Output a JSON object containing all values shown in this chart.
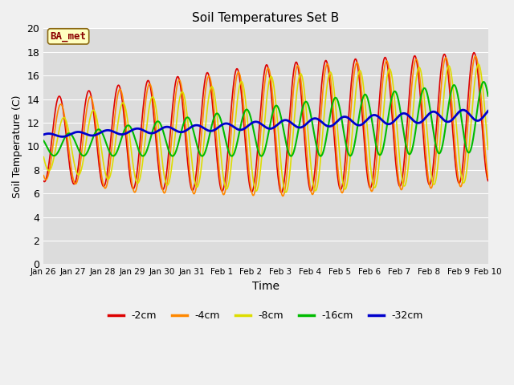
{
  "title": "Soil Temperatures Set B",
  "xlabel": "Time",
  "ylabel": "Soil Temperature (C)",
  "annotation": "BA_met",
  "ylim": [
    0,
    20
  ],
  "yticks": [
    0,
    2,
    4,
    6,
    8,
    10,
    12,
    14,
    16,
    18,
    20
  ],
  "xtick_labels": [
    "Jan 26",
    "Jan 27",
    "Jan 28",
    "Jan 29",
    "Jan 30",
    "Jan 31",
    "Feb 1",
    "Feb 2",
    "Feb 3",
    "Feb 4",
    "Feb 5",
    "Feb 6",
    "Feb 7",
    "Feb 8",
    "Feb 9",
    "Feb 10"
  ],
  "legend_labels": [
    "-2cm",
    "-4cm",
    "-8cm",
    "-16cm",
    "-32cm"
  ],
  "legend_colors": [
    "#dd0000",
    "#ff8800",
    "#dddd00",
    "#00bb00",
    "#0000cc"
  ],
  "line_colors": [
    "#dd0000",
    "#ff8800",
    "#dddd00",
    "#00bb00",
    "#0000cc"
  ],
  "line_widths": [
    1.2,
    1.2,
    1.2,
    1.5,
    2.0
  ],
  "fig_bg": "#f0f0f0",
  "plot_bg": "#dcdcdc",
  "grid_color": "#ffffff"
}
